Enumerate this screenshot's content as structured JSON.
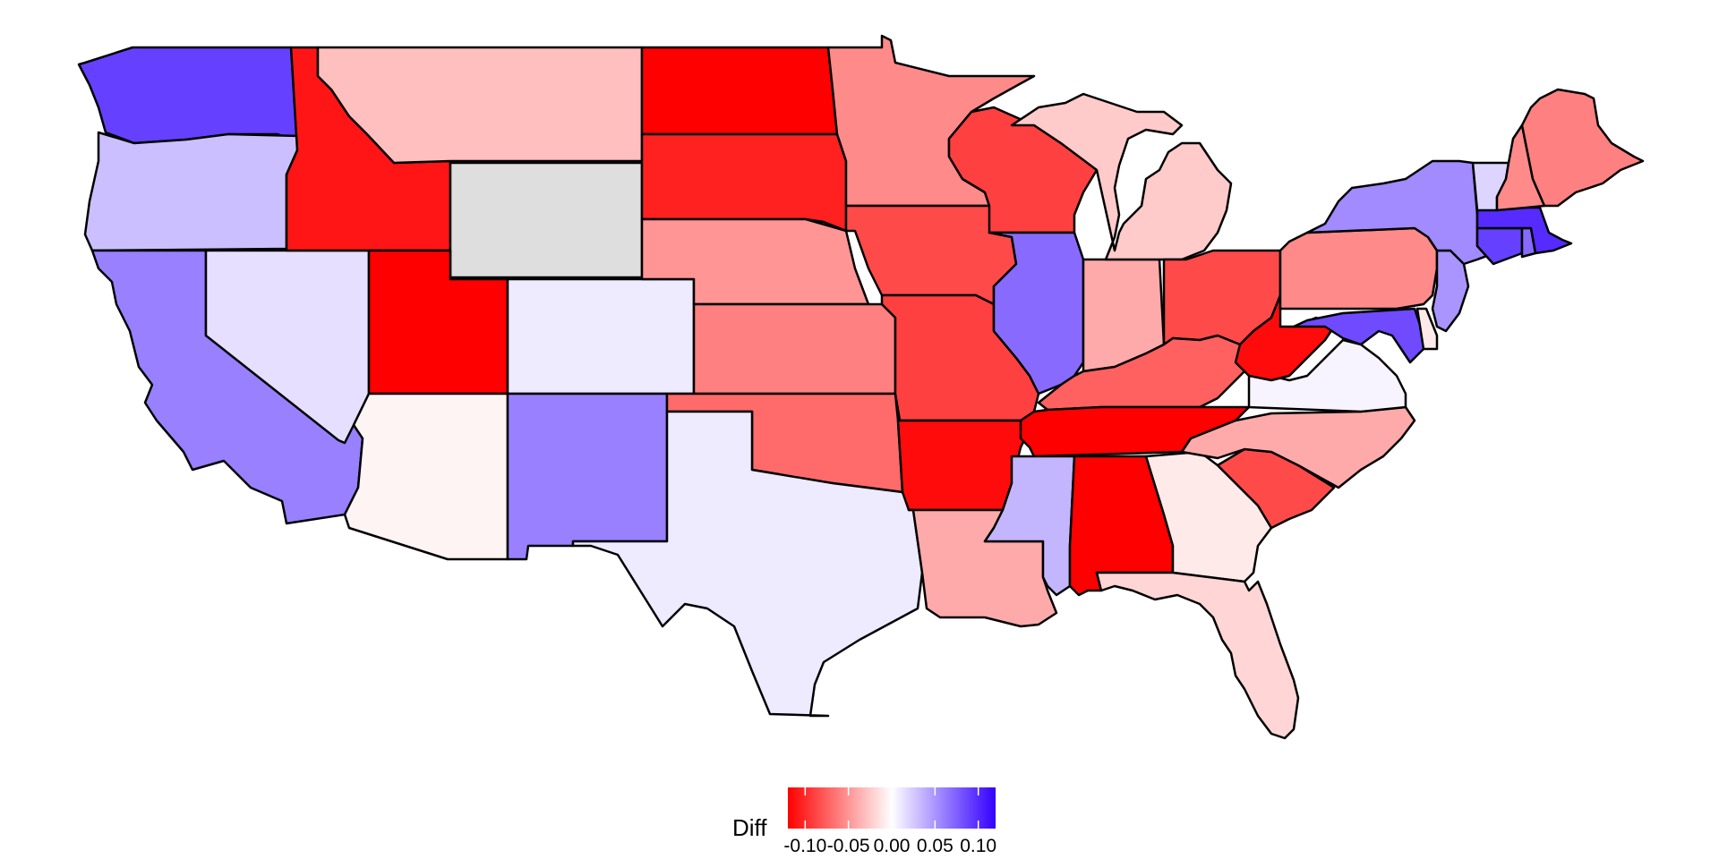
{
  "map": {
    "variable": "Diff",
    "na_color": "#dedede",
    "scale": {
      "type": "diverging",
      "min": -0.12,
      "max": 0.12,
      "low_color": "#ff0000",
      "mid_color": "#ffffff",
      "high_color": "#3300ff"
    },
    "states": [
      {
        "code": "WA",
        "value": 0.09
      },
      {
        "code": "OR",
        "value": 0.03
      },
      {
        "code": "CA",
        "value": 0.06
      },
      {
        "code": "NV",
        "value": 0.015
      },
      {
        "code": "ID",
        "value": -0.11
      },
      {
        "code": "MT",
        "value": -0.03
      },
      {
        "code": "WY",
        "value": null
      },
      {
        "code": "UT",
        "value": -0.12
      },
      {
        "code": "CO",
        "value": 0.01
      },
      {
        "code": "AZ",
        "value": -0.005
      },
      {
        "code": "NM",
        "value": 0.06
      },
      {
        "code": "TX",
        "value": 0.01
      },
      {
        "code": "ND",
        "value": -0.12
      },
      {
        "code": "SD",
        "value": -0.105
      },
      {
        "code": "NE",
        "value": -0.05
      },
      {
        "code": "KS",
        "value": -0.06
      },
      {
        "code": "OK",
        "value": -0.07
      },
      {
        "code": "MN",
        "value": -0.055
      },
      {
        "code": "IA",
        "value": -0.085
      },
      {
        "code": "MO",
        "value": -0.09
      },
      {
        "code": "AR",
        "value": -0.115
      },
      {
        "code": "LA",
        "value": -0.04
      },
      {
        "code": "WI",
        "value": -0.09
      },
      {
        "code": "IL",
        "value": 0.07
      },
      {
        "code": "MI",
        "value": -0.025
      },
      {
        "code": "IN",
        "value": -0.04
      },
      {
        "code": "OH",
        "value": -0.085
      },
      {
        "code": "KY",
        "value": -0.075
      },
      {
        "code": "TN",
        "value": -0.12
      },
      {
        "code": "MS",
        "value": 0.035
      },
      {
        "code": "AL",
        "value": -0.12
      },
      {
        "code": "GA",
        "value": -0.01
      },
      {
        "code": "FL",
        "value": -0.02
      },
      {
        "code": "SC",
        "value": -0.085
      },
      {
        "code": "NC",
        "value": -0.04
      },
      {
        "code": "VA",
        "value": 0.005
      },
      {
        "code": "WV",
        "value": -0.115
      },
      {
        "code": "PA",
        "value": -0.055
      },
      {
        "code": "NY",
        "value": 0.055
      },
      {
        "code": "NJ",
        "value": 0.05
      },
      {
        "code": "MD",
        "value": 0.085
      },
      {
        "code": "DE",
        "value": -0.01
      },
      {
        "code": "CT",
        "value": 0.09
      },
      {
        "code": "RI",
        "value": 0.07
      },
      {
        "code": "MA",
        "value": 0.1
      },
      {
        "code": "VT",
        "value": 0.02
      },
      {
        "code": "NH",
        "value": -0.055
      },
      {
        "code": "ME",
        "value": -0.06
      }
    ]
  },
  "legend": {
    "title": "Diff",
    "ticks": [
      {
        "value": -0.1,
        "label": "-0.10"
      },
      {
        "value": -0.05,
        "label": "-0.05"
      },
      {
        "value": 0.0,
        "label": "0.00"
      },
      {
        "value": 0.05,
        "label": "0.05"
      },
      {
        "value": 0.1,
        "label": "0.10"
      }
    ]
  }
}
